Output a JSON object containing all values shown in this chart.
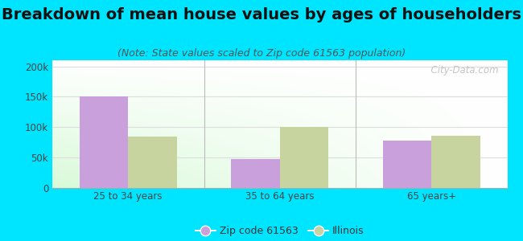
{
  "title": "Breakdown of mean house values by ages of householders",
  "subtitle": "(Note: State values scaled to Zip code 61563 population)",
  "categories": [
    "25 to 34 years",
    "35 to 64 years",
    "65 years+"
  ],
  "zip_values": [
    150000,
    47500,
    78000
  ],
  "il_values": [
    85000,
    100000,
    86000
  ],
  "zip_color": "#c9a0dc",
  "il_color": "#c8d4a0",
  "background_outer": "#00e5ff",
  "ylim": [
    0,
    210000
  ],
  "yticks": [
    0,
    50000,
    100000,
    150000,
    200000
  ],
  "ytick_labels": [
    "0",
    "50k",
    "100k",
    "150k",
    "200k"
  ],
  "legend_labels": [
    "Zip code 61563",
    "Illinois"
  ],
  "bar_width": 0.32,
  "title_fontsize": 14,
  "subtitle_fontsize": 9,
  "watermark": "  City-Data.com"
}
